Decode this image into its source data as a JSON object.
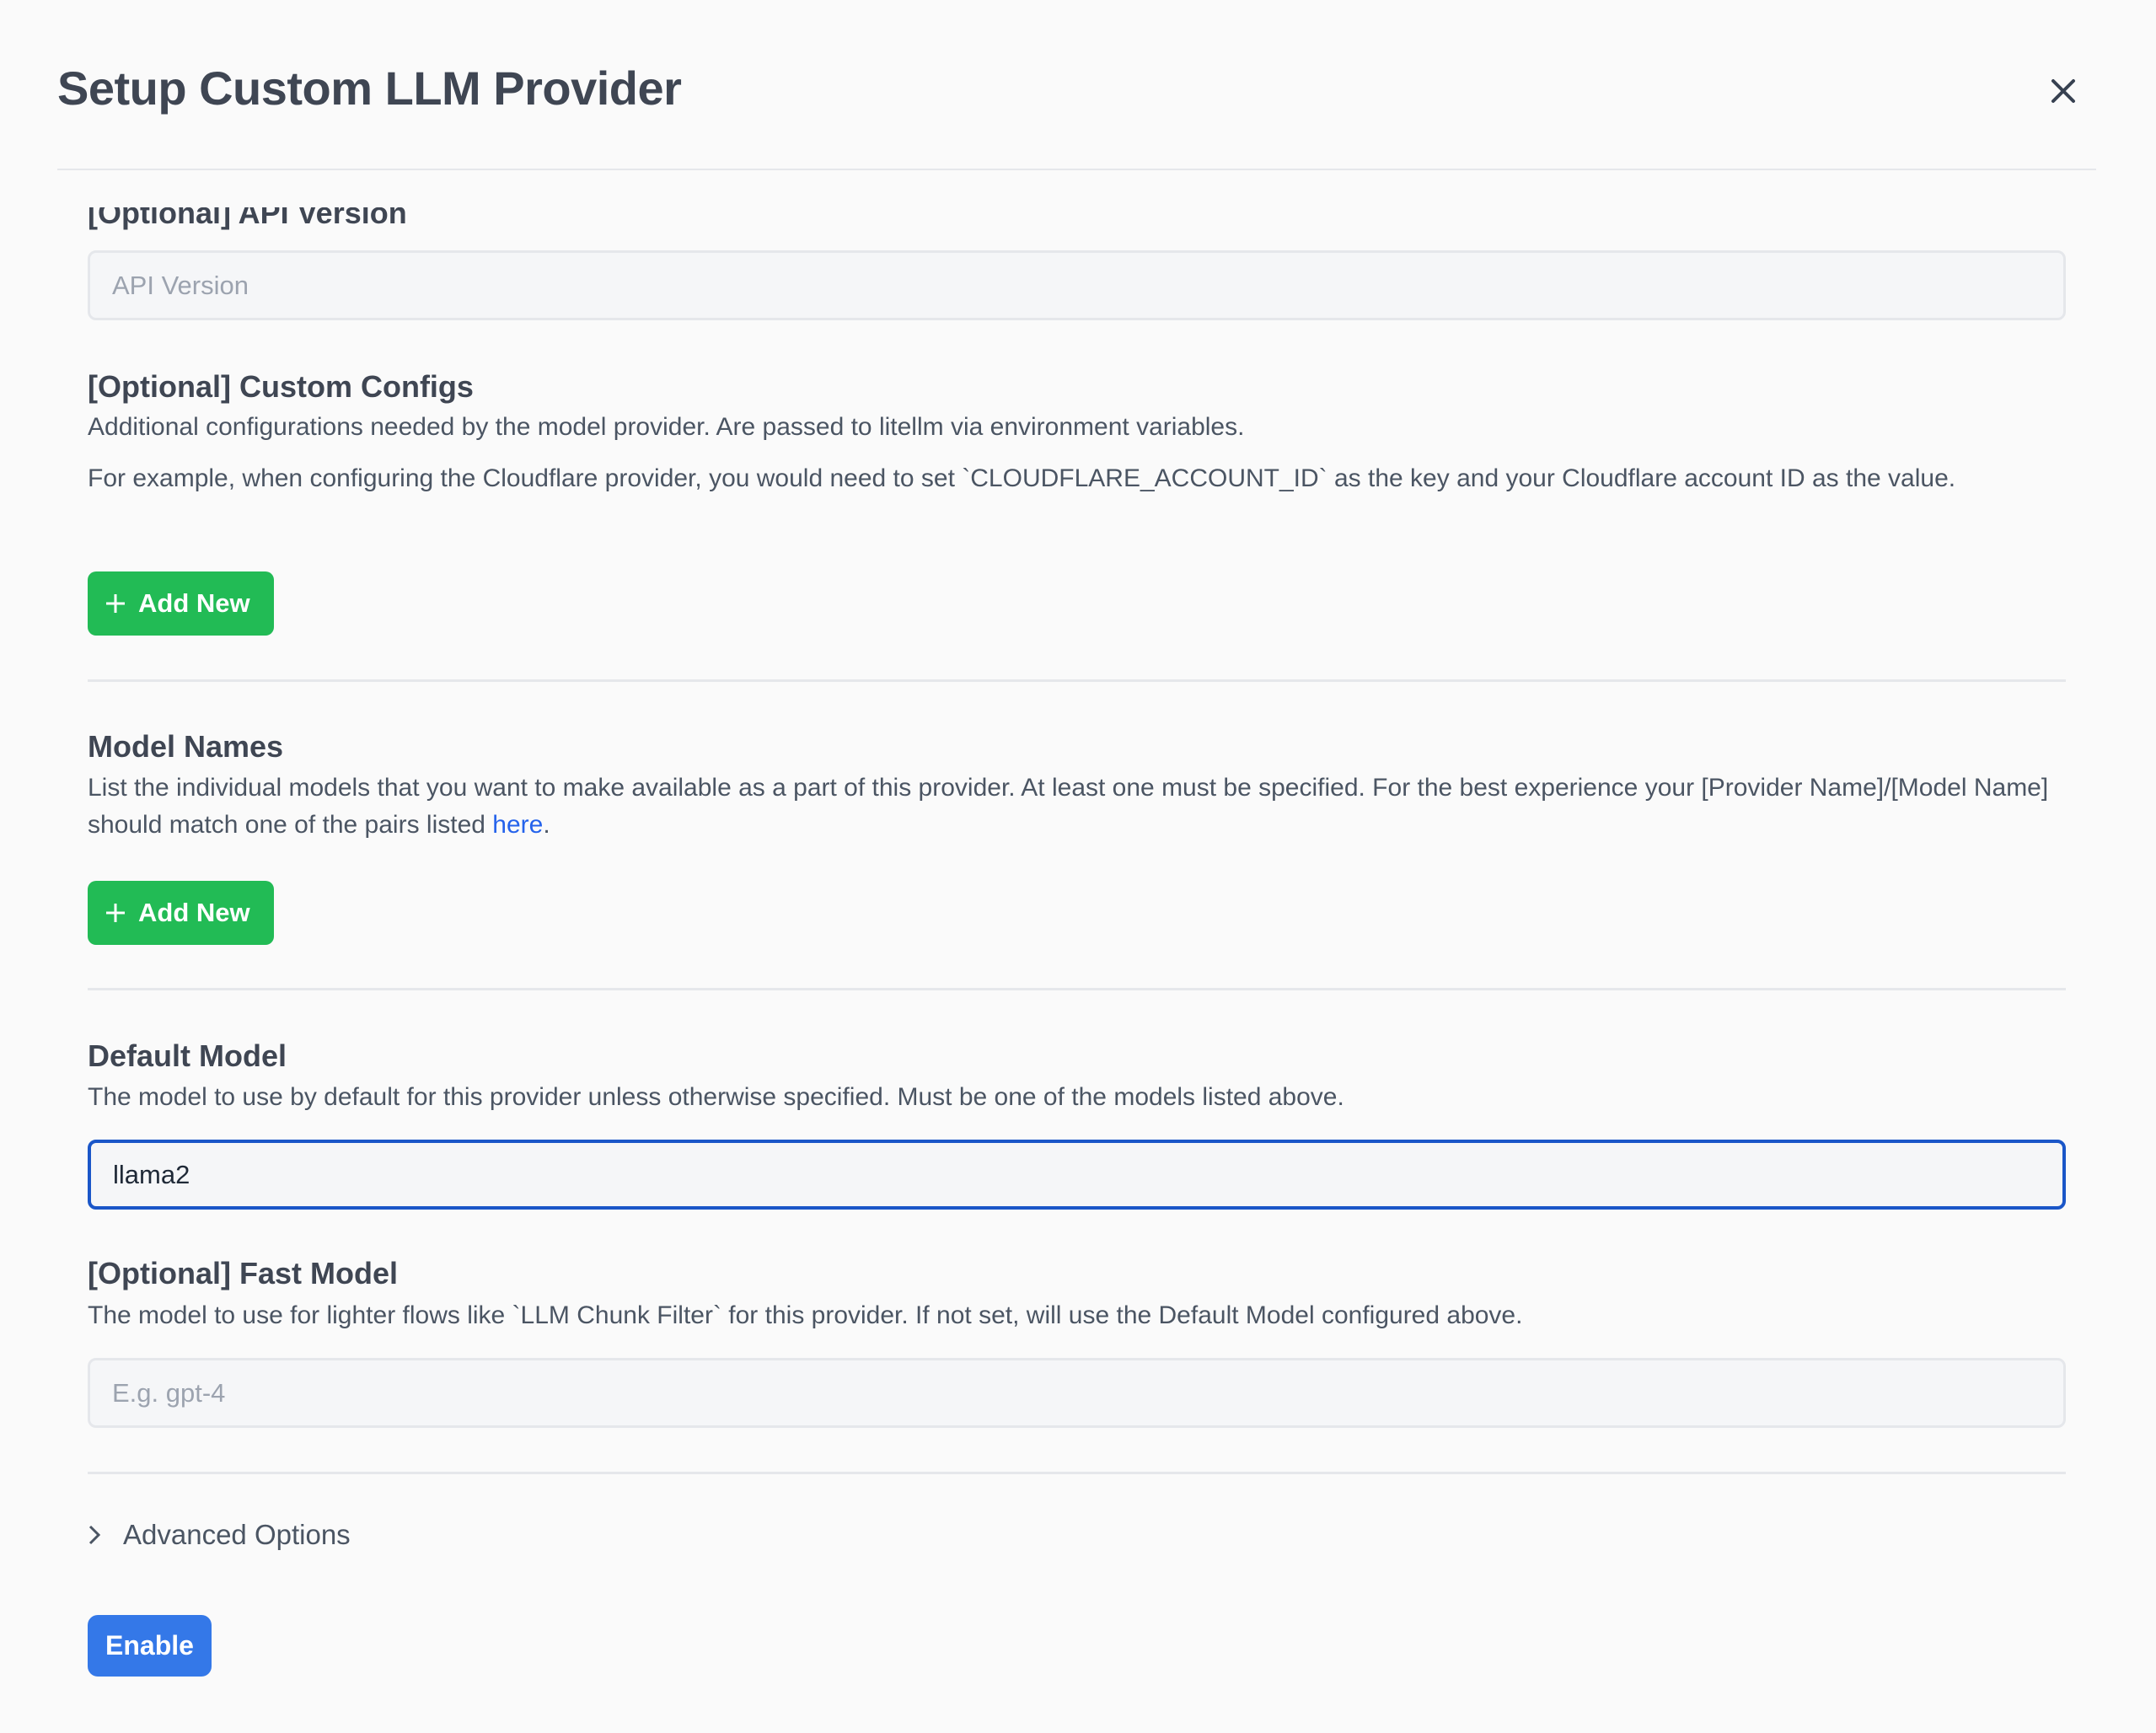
{
  "dialog": {
    "title": "Setup Custom LLM Provider",
    "close_icon": "close-icon"
  },
  "api_version": {
    "label": "[Optional] API Version",
    "placeholder": "API Version",
    "value": ""
  },
  "custom_configs": {
    "label": "[Optional] Custom Configs",
    "description": "Additional configurations needed by the model provider. Are passed to litellm via environment variables.",
    "example": "For example, when configuring the Cloudflare provider, you would need to set `CLOUDFLARE_ACCOUNT_ID` as the key and your Cloudflare account ID as the value.",
    "add_label": "Add New"
  },
  "model_names": {
    "label": "Model Names",
    "description": "List the individual models that you want to make available as a part of this provider. At least one must be specified. For the best experience your [Provider Name]/[Model Name] should match one of the pairs listed ",
    "link_text": "here",
    "after_link": ".",
    "add_label": "Add New"
  },
  "default_model": {
    "label": "Default Model",
    "description": "The model to use by default for this provider unless otherwise specified. Must be one of the models listed above.",
    "value": "llama2"
  },
  "fast_model": {
    "label": "[Optional] Fast Model",
    "description": "The model to use for lighter flows like `LLM Chunk Filter` for this provider. If not set, will use the Default Model configured above.",
    "placeholder": "E.g. gpt-4",
    "value": ""
  },
  "advanced": {
    "label": "Advanced Options",
    "expanded": false
  },
  "enable_label": "Enable",
  "colors": {
    "accent_green": "#22bb55",
    "primary_blue": "#3478e8",
    "focus_border": "#1a56c8",
    "link": "#2563eb"
  }
}
